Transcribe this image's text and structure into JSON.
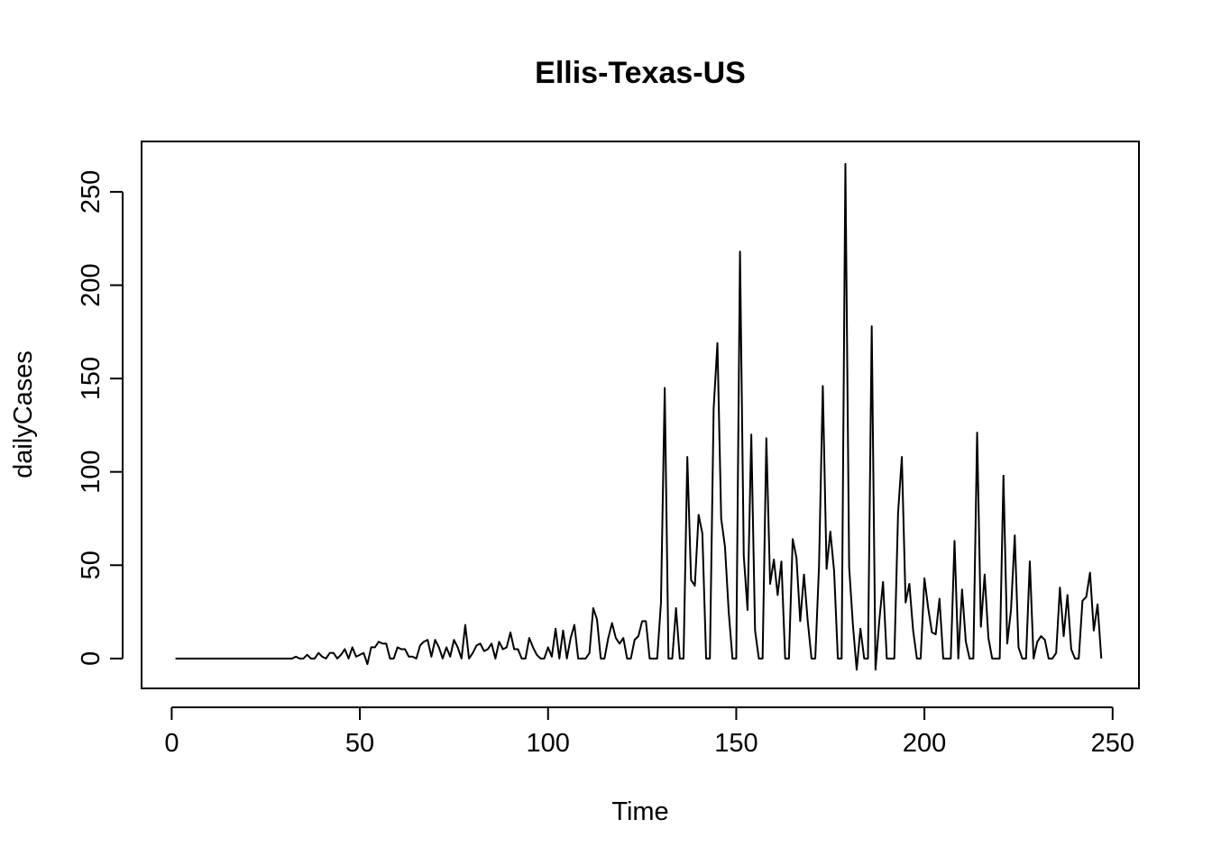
{
  "chart_data": {
    "type": "line",
    "title": "Ellis-Texas-US",
    "xlabel": "Time",
    "ylabel": "dailyCases",
    "xlim": [
      -8,
      257
    ],
    "ylim": [
      -16,
      277
    ],
    "x_ticks": [
      0,
      50,
      100,
      150,
      200,
      250
    ],
    "y_ticks": [
      0,
      50,
      100,
      150,
      200,
      250
    ],
    "grid": false,
    "legend": "none",
    "series": [
      {
        "name": "dailyCases",
        "color": "#000000",
        "x_start": 1,
        "values": [
          0,
          0,
          0,
          0,
          0,
          0,
          0,
          0,
          0,
          0,
          0,
          0,
          0,
          0,
          0,
          0,
          0,
          0,
          0,
          0,
          0,
          0,
          0,
          0,
          0,
          0,
          0,
          0,
          0,
          0,
          0,
          0,
          1,
          0,
          0,
          2,
          0,
          0,
          3,
          1,
          0,
          3,
          3,
          0,
          2,
          5,
          0,
          6,
          1,
          2,
          3,
          -3,
          6,
          6,
          9,
          8,
          8,
          0,
          0,
          6,
          5,
          5,
          1,
          1,
          0,
          7,
          9,
          10,
          1,
          10,
          6,
          0,
          6,
          1,
          10,
          6,
          0,
          18,
          0,
          3,
          7,
          8,
          4,
          5,
          8,
          0,
          9,
          5,
          6,
          14,
          5,
          5,
          0,
          0,
          11,
          6,
          2,
          0,
          0,
          6,
          1,
          16,
          0,
          15,
          0,
          11,
          18,
          0,
          0,
          0,
          3,
          27,
          21,
          0,
          0,
          11,
          19,
          11,
          8,
          11,
          0,
          0,
          10,
          12,
          20,
          20,
          0,
          0,
          0,
          30,
          145,
          0,
          0,
          27,
          0,
          0,
          108,
          42,
          39,
          77,
          67,
          0,
          0,
          134,
          169,
          75,
          60,
          25,
          0,
          0,
          218,
          55,
          26,
          120,
          15,
          0,
          0,
          118,
          40,
          53,
          34,
          52,
          0,
          0,
          64,
          54,
          20,
          45,
          20,
          0,
          0,
          50,
          146,
          48,
          68,
          47,
          0,
          0,
          265,
          49,
          18,
          -6,
          16,
          0,
          0,
          178,
          -6,
          20,
          41,
          0,
          0,
          0,
          78,
          108,
          30,
          40,
          15,
          0,
          0,
          43,
          27,
          14,
          13,
          32,
          0,
          0,
          0,
          63,
          0,
          37,
          9,
          0,
          0,
          121,
          17,
          45,
          11,
          0,
          0,
          0,
          98,
          8,
          26,
          66,
          6,
          0,
          0,
          52,
          0,
          9,
          12,
          10,
          0,
          0,
          3,
          38,
          12,
          34,
          5,
          0,
          0,
          31,
          33,
          46,
          15,
          29,
          0
        ]
      }
    ]
  }
}
